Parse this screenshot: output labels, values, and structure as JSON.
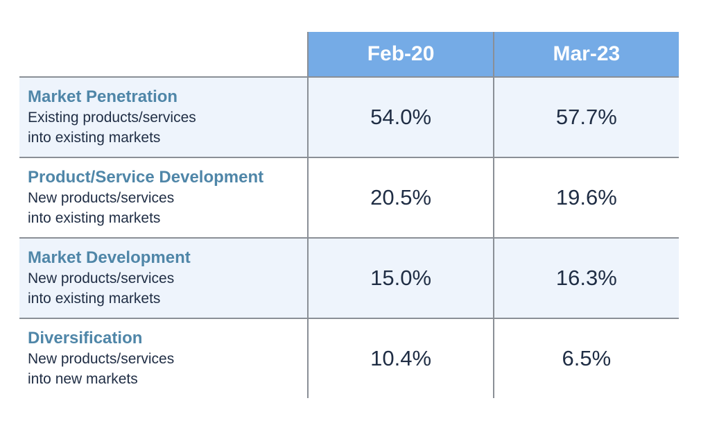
{
  "chart_data": {
    "type": "table",
    "columns": [
      "Feb-20",
      "Mar-23"
    ],
    "rows": [
      {
        "strategy": "Market Penetration",
        "desc_line1": "Existing products/services",
        "desc_line2": "into existing markets",
        "values": [
          "54.0%",
          "57.7%"
        ]
      },
      {
        "strategy": "Product/Service Development",
        "desc_line1": "New products/services",
        "desc_line2": "into existing markets",
        "values": [
          "20.5%",
          "19.6%"
        ]
      },
      {
        "strategy": "Market Development",
        "desc_line1": "New products/services",
        "desc_line2": "into existing markets",
        "values": [
          "15.0%",
          "16.3%"
        ]
      },
      {
        "strategy": "Diversification",
        "desc_line1": "New products/services",
        "desc_line2": "into new markets",
        "values": [
          "10.4%",
          "6.5%"
        ]
      }
    ],
    "colors": {
      "header_fill": "#75abe6",
      "row_shade": "#eef4fc",
      "strategy_text": "#4f86a8",
      "body_text": "#1f2d44",
      "rule": "#8a8f96"
    }
  }
}
